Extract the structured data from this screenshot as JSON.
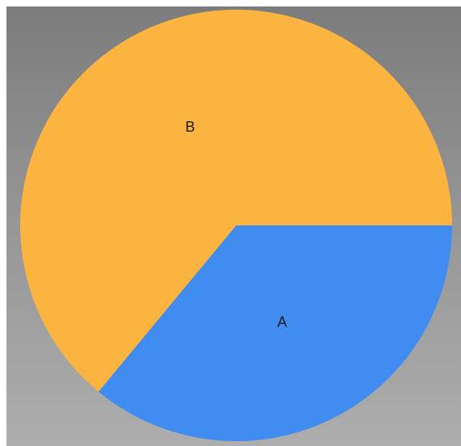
{
  "chart_data": {
    "type": "pie",
    "title": "",
    "slices": [
      {
        "label": "A",
        "value": 36,
        "color": "#418CF0"
      },
      {
        "label": "B",
        "value": 64,
        "color": "#FCB441"
      }
    ],
    "start_angle_deg": 0,
    "direction": "clockwise",
    "legend": "none",
    "background": {
      "top": "#7c7c7c",
      "bottom": "#adadad"
    }
  }
}
